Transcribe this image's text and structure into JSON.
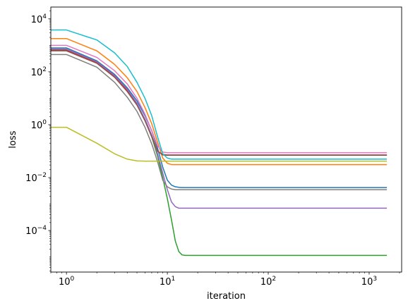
{
  "chart_data": {
    "type": "line",
    "title": "",
    "xlabel": "iteration",
    "ylabel": "loss",
    "xscale": "log",
    "yscale": "log",
    "xlim": [
      0.7,
      2100
    ],
    "ylim": [
      2.7e-06,
      28000
    ],
    "grid": false,
    "x_ticks": [
      {
        "value": 1,
        "base": "10",
        "exp": "0"
      },
      {
        "value": 10,
        "base": "10",
        "exp": "1"
      },
      {
        "value": 100,
        "base": "10",
        "exp": "2"
      },
      {
        "value": 1000,
        "base": "10",
        "exp": "3"
      }
    ],
    "y_ticks": [
      {
        "value": 10000,
        "base": "10",
        "exp": "4"
      },
      {
        "value": 100,
        "base": "10",
        "exp": "2"
      },
      {
        "value": 1,
        "base": "10",
        "exp": "0"
      },
      {
        "value": 0.01,
        "base": "10",
        "exp": "−2"
      },
      {
        "value": 0.0001,
        "base": "10",
        "exp": "−4"
      }
    ],
    "x": [
      0.7,
      1,
      2,
      3,
      4,
      5,
      6,
      7,
      8,
      9,
      10,
      11,
      12,
      13,
      14,
      15,
      20,
      50,
      100,
      300,
      1000,
      1500
    ],
    "series": [
      {
        "color": "#1f77b4",
        "values": [
          800,
          800,
          260,
          80,
          25,
          8,
          2.2,
          0.6,
          0.13,
          0.025,
          0.008,
          0.0052,
          0.0045,
          0.0043,
          0.0042,
          0.0042,
          0.0042,
          0.0042,
          0.0042,
          0.0042,
          0.0042,
          0.0042
        ]
      },
      {
        "color": "#ff7f0e",
        "values": [
          1800,
          1800,
          620,
          190,
          60,
          18,
          4.5,
          1.1,
          0.22,
          0.055,
          0.035,
          0.031,
          0.031,
          0.031,
          0.031,
          0.031,
          0.031,
          0.031,
          0.031,
          0.031,
          0.031,
          0.031
        ]
      },
      {
        "color": "#2ca02c",
        "values": [
          700,
          700,
          230,
          70,
          20,
          6,
          1.5,
          0.35,
          0.065,
          0.01,
          0.0016,
          0.00025,
          4e-05,
          1.6e-05,
          1.2e-05,
          1.15e-05,
          1.15e-05,
          1.15e-05,
          1.15e-05,
          1.15e-05,
          1.15e-05,
          1.15e-05
        ]
      },
      {
        "color": "#d62728",
        "values": [
          650,
          650,
          220,
          65,
          20,
          6,
          1.6,
          0.4,
          0.1,
          0.075,
          0.072,
          0.072,
          0.072,
          0.072,
          0.072,
          0.072,
          0.072,
          0.072,
          0.072,
          0.072,
          0.072,
          0.072
        ]
      },
      {
        "color": "#9467bd",
        "values": [
          720,
          720,
          240,
          72,
          22,
          6.5,
          1.6,
          0.4,
          0.08,
          0.015,
          0.0035,
          0.0012,
          0.0008,
          0.0007,
          0.0007,
          0.0007,
          0.0007,
          0.0007,
          0.0007,
          0.0007,
          0.0007,
          0.0007
        ]
      },
      {
        "color": "#8c564b",
        "values": [
          620,
          620,
          210,
          62,
          18,
          5.5,
          1.4,
          0.35,
          0.1,
          0.072,
          0.07,
          0.07,
          0.07,
          0.07,
          0.07,
          0.07,
          0.07,
          0.07,
          0.07,
          0.07,
          0.07,
          0.07
        ]
      },
      {
        "color": "#e377c2",
        "values": [
          1000,
          1000,
          350,
          110,
          35,
          10,
          2.5,
          0.6,
          0.16,
          0.092,
          0.088,
          0.088,
          0.088,
          0.088,
          0.088,
          0.088,
          0.088,
          0.088,
          0.088,
          0.088,
          0.088,
          0.088
        ]
      },
      {
        "color": "#7f7f7f",
        "values": [
          450,
          450,
          150,
          40,
          11,
          3.2,
          0.8,
          0.19,
          0.04,
          0.008,
          0.0045,
          0.0037,
          0.0035,
          0.0035,
          0.0035,
          0.0035,
          0.0035,
          0.0035,
          0.0035,
          0.0035,
          0.0035,
          0.0035
        ]
      },
      {
        "color": "#bcbd22",
        "values": [
          0.8,
          0.8,
          0.2,
          0.08,
          0.05,
          0.043,
          0.042,
          0.042,
          0.042,
          0.042,
          0.042,
          0.042,
          0.042,
          0.042,
          0.042,
          0.042,
          0.042,
          0.042,
          0.042,
          0.042,
          0.042,
          0.042
        ]
      },
      {
        "color": "#17becf",
        "values": [
          3800,
          3800,
          1600,
          520,
          160,
          40,
          10,
          2.2,
          0.35,
          0.08,
          0.055,
          0.05,
          0.05,
          0.05,
          0.05,
          0.05,
          0.05,
          0.05,
          0.05,
          0.05,
          0.05,
          0.05
        ]
      }
    ]
  }
}
